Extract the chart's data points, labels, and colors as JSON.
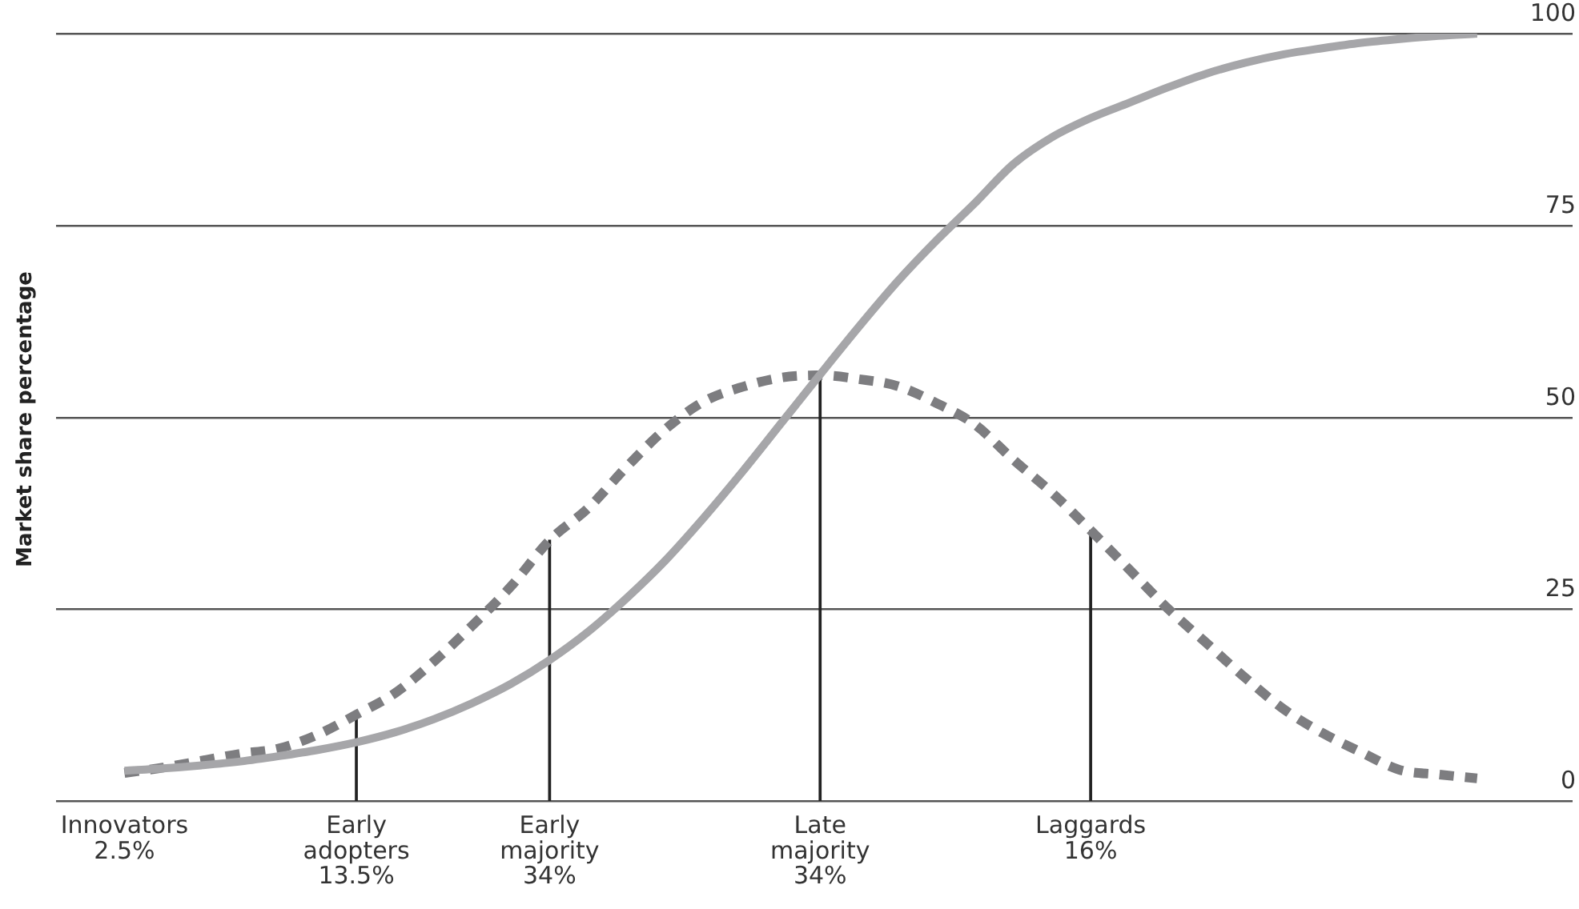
{
  "chart_data": {
    "type": "line",
    "ylabel": "Market share percentage",
    "categories": [
      "Innovators\n2.5%",
      null,
      null,
      null,
      null,
      null,
      "Early\nadopters\n13.5%",
      null,
      null,
      null,
      null,
      "Early\nmajority\n34%",
      null,
      null,
      null,
      null,
      null,
      null,
      "Late\nmajority\n34%",
      null,
      null,
      null,
      null,
      null,
      null,
      "Laggards\n16%",
      null,
      null,
      null,
      null,
      null,
      null,
      null,
      null,
      null,
      null
    ],
    "ylim": [
      0,
      100
    ],
    "yticks": [
      0,
      25,
      50,
      75,
      100
    ],
    "grid": "y",
    "marker": "none",
    "series": [
      {
        "color": "#a6a6a9",
        "line_style": "solid",
        "values": [
          4.0,
          4.3,
          4.7,
          5.2,
          5.9,
          6.7,
          7.7,
          9.0,
          10.7,
          12.8,
          15.3,
          18.4,
          22.1,
          26.5,
          31.4,
          37.0,
          43.0,
          49.3,
          55.6,
          61.8,
          67.7,
          73.0,
          77.9,
          83.0,
          86.5,
          89.0,
          91.0,
          93.0,
          94.8,
          96.2,
          97.3,
          98.1,
          98.8,
          99.3,
          99.7,
          100
        ]
      },
      {
        "color": "#7d7d80",
        "line_style": "dashed",
        "values": [
          3.7,
          4.4,
          5.3,
          6.2,
          6.9,
          8.7,
          11.3,
          14.1,
          18.2,
          22.9,
          28.0,
          34.0,
          38.2,
          43.6,
          48.5,
          52.1,
          54.0,
          55.2,
          55.5,
          55.0,
          54.1,
          51.9,
          49.1,
          44.5,
          40.2,
          35.3,
          30.2,
          25.1,
          20.6,
          16.1,
          12.0,
          8.9,
          6.4,
          4.1,
          3.5,
          3.0
        ]
      },
      {
        "type": "bar",
        "color": "#222222",
        "values": [
          null,
          null,
          null,
          null,
          null,
          null,
          11.3,
          null,
          null,
          null,
          null,
          34,
          null,
          null,
          null,
          null,
          null,
          null,
          55.3,
          null,
          null,
          null,
          null,
          null,
          null,
          35.3,
          null,
          null,
          null,
          null,
          null,
          null,
          null,
          null,
          null,
          null
        ]
      }
    ]
  }
}
